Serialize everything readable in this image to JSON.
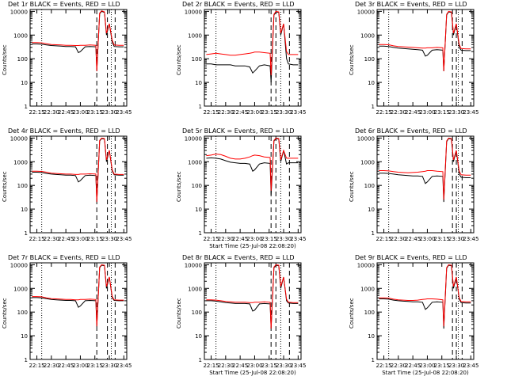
{
  "background": "#ffffff",
  "colors": {
    "events": "#000000",
    "lld": "#ff0000",
    "axes": "#000000"
  },
  "chart_data": [
    {
      "type": "line",
      "title": "Det 1r BLACK = Events, RED = LLD",
      "xlabel": "",
      "ylabel": "Counts/sec",
      "x": [
        "22:10",
        "22:15",
        "22:20",
        "22:25",
        "22:30",
        "22:35",
        "22:40",
        "22:45",
        "22:50",
        "22:55",
        "22:58",
        "23:00",
        "23:05",
        "23:10",
        "23:16",
        "23:17",
        "23:20",
        "23:22",
        "23:25",
        "23:27",
        "23:30",
        "23:33",
        "23:35",
        "23:40",
        "23:45"
      ],
      "ylog": true,
      "ylim": [
        1,
        12000
      ],
      "xticks": [
        "22:15",
        "22:30",
        "22:45",
        "23:00",
        "23:15",
        "23:30",
        "23:45"
      ],
      "yticks": [
        "1",
        "10",
        "100",
        "1000",
        "10000"
      ],
      "series": [
        {
          "name": "Events",
          "values": [
            420,
            420,
            410,
            380,
            360,
            350,
            340,
            330,
            330,
            320,
            180,
            200,
            320,
            330,
            320,
            30,
            8000,
            10000,
            9000,
            1000,
            3000,
            500,
            330,
            320,
            320
          ]
        },
        {
          "name": "LLD",
          "values": [
            480,
            480,
            470,
            430,
            400,
            390,
            380,
            370,
            370,
            360,
            360,
            370,
            370,
            380,
            370,
            30,
            8500,
            10500,
            9500,
            1200,
            3000,
            600,
            380,
            370,
            370
          ]
        }
      ],
      "vlines_dotted": [
        "22:20",
        "23:32"
      ],
      "vlines_dashed": [
        "23:17",
        "23:28",
        "23:36"
      ]
    },
    {
      "type": "line",
      "title": "Det 2r BLACK = Events, RED = LLD",
      "xlabel": "",
      "ylabel": "Counts/sec",
      "x": [
        "22:10",
        "22:15",
        "22:20",
        "22:25",
        "22:30",
        "22:35",
        "22:40",
        "22:45",
        "22:50",
        "22:55",
        "22:58",
        "23:00",
        "23:05",
        "23:10",
        "23:16",
        "23:17",
        "23:20",
        "23:22",
        "23:25",
        "23:27",
        "23:30",
        "23:33",
        "23:35",
        "23:40",
        "23:45"
      ],
      "ylog": true,
      "ylim": [
        1,
        12000
      ],
      "xticks": [
        "22:15",
        "22:30",
        "22:45",
        "23:00",
        "23:15",
        "23:30",
        "23:45"
      ],
      "yticks": [
        "1",
        "10",
        "100",
        "1000",
        "10000"
      ],
      "series": [
        {
          "name": "Events",
          "values": [
            60,
            60,
            55,
            55,
            55,
            55,
            50,
            50,
            50,
            45,
            25,
            30,
            50,
            55,
            50,
            10,
            7000,
            9500,
            9000,
            1000,
            3000,
            100,
            60,
            55,
            55
          ]
        },
        {
          "name": "LLD",
          "values": [
            150,
            160,
            170,
            160,
            150,
            140,
            140,
            150,
            160,
            170,
            180,
            190,
            190,
            180,
            170,
            20,
            7500,
            10000,
            9500,
            1200,
            3000,
            200,
            150,
            150,
            150
          ]
        }
      ],
      "vlines_dotted": [
        "22:20",
        "23:27"
      ],
      "vlines_dashed": [
        "23:17",
        "23:22",
        "23:36"
      ]
    },
    {
      "type": "line",
      "title": "Det 3r BLACK = Events, RED = LLD",
      "xlabel": "",
      "ylabel": "Counts/sec",
      "x": [
        "22:10",
        "22:15",
        "22:20",
        "22:25",
        "22:30",
        "22:35",
        "22:40",
        "22:45",
        "22:50",
        "22:55",
        "22:58",
        "23:00",
        "23:05",
        "23:10",
        "23:16",
        "23:17",
        "23:20",
        "23:22",
        "23:25",
        "23:27",
        "23:30",
        "23:33",
        "23:35",
        "23:40",
        "23:45"
      ],
      "ylog": true,
      "ylim": [
        1,
        12000
      ],
      "xticks": [
        "22:15",
        "22:30",
        "22:45",
        "23:00",
        "23:15",
        "23:30",
        "23:45"
      ],
      "yticks": [
        "1",
        "10",
        "100",
        "1000",
        "10000"
      ],
      "series": [
        {
          "name": "Events",
          "values": [
            340,
            340,
            330,
            300,
            280,
            270,
            260,
            250,
            240,
            230,
            130,
            140,
            230,
            240,
            230,
            30,
            7000,
            9500,
            9000,
            1000,
            3000,
            300,
            230,
            220,
            220
          ]
        },
        {
          "name": "LLD",
          "values": [
            400,
            400,
            390,
            350,
            330,
            320,
            310,
            300,
            290,
            280,
            280,
            290,
            290,
            300,
            290,
            30,
            7500,
            10000,
            9500,
            1200,
            3000,
            400,
            270,
            260,
            260
          ]
        }
      ],
      "vlines_dotted": [
        "22:20",
        "23:32"
      ],
      "vlines_dashed": [
        "23:26",
        "23:30",
        "23:36"
      ]
    },
    {
      "type": "line",
      "title": "Det 4r BLACK = Events, RED = LLD",
      "xlabel": "",
      "ylabel": "Counts/sec",
      "x": [
        "22:10",
        "22:15",
        "22:20",
        "22:25",
        "22:30",
        "22:35",
        "22:40",
        "22:45",
        "22:50",
        "22:55",
        "22:58",
        "23:00",
        "23:05",
        "23:10",
        "23:16",
        "23:17",
        "23:20",
        "23:22",
        "23:25",
        "23:27",
        "23:30",
        "23:33",
        "23:35",
        "23:40",
        "23:45"
      ],
      "ylog": true,
      "ylim": [
        1,
        12000
      ],
      "xticks": [
        "22:15",
        "22:30",
        "22:45",
        "23:00",
        "23:15",
        "23:30",
        "23:45"
      ],
      "yticks": [
        "1",
        "10",
        "100",
        "1000",
        "10000"
      ],
      "series": [
        {
          "name": "Events",
          "values": [
            360,
            360,
            350,
            320,
            300,
            290,
            280,
            270,
            270,
            260,
            140,
            160,
            260,
            270,
            260,
            20,
            7500,
            9500,
            9000,
            1000,
            3000,
            400,
            280,
            270,
            270
          ]
        },
        {
          "name": "LLD",
          "values": [
            400,
            400,
            390,
            360,
            330,
            320,
            310,
            300,
            300,
            290,
            290,
            300,
            300,
            310,
            300,
            20,
            8000,
            10000,
            9500,
            1200,
            3000,
            450,
            300,
            290,
            290
          ]
        }
      ],
      "vlines_dotted": [
        "22:20",
        "23:32"
      ],
      "vlines_dashed": [
        "23:17",
        "23:28",
        "23:36"
      ]
    },
    {
      "type": "line",
      "title": "Det 5r BLACK = Events, RED = LLD",
      "xlabel": "Start Time (25-Jul-08 22:08:20)",
      "ylabel": "Counts/sec",
      "x": [
        "22:10",
        "22:15",
        "22:20",
        "22:25",
        "22:30",
        "22:35",
        "22:40",
        "22:45",
        "22:50",
        "22:55",
        "22:58",
        "23:00",
        "23:05",
        "23:10",
        "23:16",
        "23:17",
        "23:20",
        "23:22",
        "23:25",
        "23:27",
        "23:30",
        "23:33",
        "23:35",
        "23:40",
        "23:45"
      ],
      "ylog": true,
      "ylim": [
        1,
        12000
      ],
      "xticks": [
        "22:15",
        "22:30",
        "22:45",
        "23:00",
        "23:15",
        "23:30",
        "23:45"
      ],
      "yticks": [
        "1",
        "10",
        "100",
        "1000",
        "10000"
      ],
      "series": [
        {
          "name": "Events",
          "values": [
            1400,
            1450,
            1400,
            1300,
            1100,
            950,
            900,
            850,
            850,
            800,
            400,
            450,
            800,
            900,
            850,
            40,
            7500,
            9500,
            9000,
            1000,
            3000,
            800,
            900,
            900,
            900
          ]
        },
        {
          "name": "LLD",
          "values": [
            1800,
            1900,
            2100,
            2000,
            1700,
            1400,
            1300,
            1300,
            1400,
            1600,
            1800,
            1900,
            1800,
            1600,
            1500,
            60,
            8000,
            10000,
            9500,
            1200,
            3000,
            1400,
            1400,
            1400,
            1400
          ]
        }
      ],
      "vlines_dotted": [
        "22:20",
        "23:27"
      ],
      "vlines_dashed": [
        "23:17",
        "23:22",
        "23:36"
      ]
    },
    {
      "type": "line",
      "title": "Det 6r BLACK = Events, RED = LLD",
      "xlabel": "",
      "ylabel": "Counts/sec",
      "x": [
        "22:10",
        "22:15",
        "22:20",
        "22:25",
        "22:30",
        "22:35",
        "22:40",
        "22:45",
        "22:50",
        "22:55",
        "22:58",
        "23:00",
        "23:05",
        "23:10",
        "23:16",
        "23:17",
        "23:20",
        "23:22",
        "23:25",
        "23:27",
        "23:30",
        "23:33",
        "23:35",
        "23:40",
        "23:45"
      ],
      "ylog": true,
      "ylim": [
        1,
        12000
      ],
      "xticks": [
        "22:15",
        "22:30",
        "22:45",
        "23:00",
        "23:15",
        "23:30",
        "23:45"
      ],
      "yticks": [
        "1",
        "10",
        "100",
        "1000",
        "10000"
      ],
      "series": [
        {
          "name": "Events",
          "values": [
            330,
            330,
            320,
            300,
            280,
            270,
            260,
            250,
            250,
            240,
            120,
            140,
            240,
            250,
            240,
            20,
            7000,
            9500,
            9000,
            1000,
            3000,
            300,
            220,
            210,
            210
          ]
        },
        {
          "name": "LLD",
          "values": [
            420,
            420,
            410,
            380,
            360,
            350,
            340,
            350,
            360,
            380,
            400,
            420,
            420,
            400,
            380,
            25,
            7500,
            10000,
            9500,
            1200,
            3000,
            400,
            280,
            270,
            270
          ]
        }
      ],
      "vlines_dotted": [
        "22:20",
        "23:32"
      ],
      "vlines_dashed": [
        "23:26",
        "23:30",
        "23:36"
      ]
    },
    {
      "type": "line",
      "title": "Det 7r BLACK = Events, RED = LLD",
      "xlabel": "",
      "ylabel": "Counts/sec",
      "x": [
        "22:10",
        "22:15",
        "22:20",
        "22:25",
        "22:30",
        "22:35",
        "22:40",
        "22:45",
        "22:50",
        "22:55",
        "22:58",
        "23:00",
        "23:05",
        "23:10",
        "23:16",
        "23:17",
        "23:20",
        "23:22",
        "23:25",
        "23:27",
        "23:30",
        "23:33",
        "23:35",
        "23:40",
        "23:45"
      ],
      "ylog": true,
      "ylim": [
        1,
        12000
      ],
      "xticks": [
        "22:15",
        "22:30",
        "22:45",
        "23:00",
        "23:15",
        "23:30",
        "23:45"
      ],
      "yticks": [
        "1",
        "10",
        "100",
        "1000",
        "10000"
      ],
      "series": [
        {
          "name": "Events",
          "values": [
            410,
            410,
            400,
            370,
            340,
            330,
            320,
            310,
            310,
            300,
            160,
            180,
            300,
            310,
            300,
            25,
            7500,
            9500,
            9000,
            1000,
            3000,
            400,
            310,
            300,
            300
          ]
        },
        {
          "name": "LLD",
          "values": [
            450,
            450,
            440,
            400,
            370,
            360,
            350,
            340,
            340,
            330,
            330,
            340,
            340,
            350,
            340,
            25,
            8000,
            10000,
            9500,
            1200,
            3000,
            450,
            330,
            320,
            320
          ]
        }
      ],
      "vlines_dotted": [
        "22:20",
        "23:32"
      ],
      "vlines_dashed": [
        "23:17",
        "23:28",
        "23:36"
      ]
    },
    {
      "type": "line",
      "title": "Det 8r BLACK = Events, RED = LLD",
      "xlabel": "Start Time (25-Jul-08 22:08:20)",
      "ylabel": "Counts/sec",
      "x": [
        "22:10",
        "22:15",
        "22:20",
        "22:25",
        "22:30",
        "22:35",
        "22:40",
        "22:45",
        "22:50",
        "22:55",
        "22:58",
        "23:00",
        "23:05",
        "23:10",
        "23:16",
        "23:17",
        "23:20",
        "23:22",
        "23:25",
        "23:27",
        "23:30",
        "23:33",
        "23:35",
        "23:40",
        "23:45"
      ],
      "ylog": true,
      "ylim": [
        1,
        12000
      ],
      "xticks": [
        "22:15",
        "22:30",
        "22:45",
        "23:00",
        "23:15",
        "23:30",
        "23:45"
      ],
      "yticks": [
        "1",
        "10",
        "100",
        "1000",
        "10000"
      ],
      "series": [
        {
          "name": "Events",
          "values": [
            300,
            300,
            290,
            270,
            250,
            240,
            230,
            230,
            230,
            220,
            110,
            120,
            220,
            230,
            220,
            20,
            7500,
            9500,
            9000,
            1000,
            3000,
            300,
            240,
            230,
            230
          ]
        },
        {
          "name": "LLD",
          "values": [
            330,
            330,
            320,
            300,
            280,
            270,
            260,
            260,
            260,
            250,
            250,
            260,
            260,
            270,
            260,
            20,
            8000,
            10000,
            9500,
            1200,
            3000,
            350,
            260,
            250,
            250
          ]
        }
      ],
      "vlines_dotted": [
        "22:20",
        "23:27"
      ],
      "vlines_dashed": [
        "23:17",
        "23:22",
        "23:36"
      ]
    },
    {
      "type": "line",
      "title": "Det 9r BLACK = Events, RED = LLD",
      "xlabel": "Start Time (25-Jul-08 22:08:20)",
      "ylabel": "Counts/sec",
      "x": [
        "22:10",
        "22:15",
        "22:20",
        "22:25",
        "22:30",
        "22:35",
        "22:40",
        "22:45",
        "22:50",
        "22:55",
        "22:58",
        "23:00",
        "23:05",
        "23:10",
        "23:16",
        "23:17",
        "23:20",
        "23:22",
        "23:25",
        "23:27",
        "23:30",
        "23:33",
        "23:35",
        "23:40",
        "23:45"
      ],
      "ylog": true,
      "ylim": [
        1,
        12000
      ],
      "xticks": [
        "22:15",
        "22:30",
        "22:45",
        "23:00",
        "23:15",
        "23:30",
        "23:45"
      ],
      "yticks": [
        "1",
        "10",
        "100",
        "1000",
        "10000"
      ],
      "series": [
        {
          "name": "Events",
          "values": [
            360,
            360,
            350,
            320,
            300,
            290,
            280,
            270,
            270,
            260,
            130,
            150,
            260,
            270,
            260,
            20,
            7000,
            9500,
            9000,
            1000,
            3000,
            350,
            250,
            240,
            240
          ]
        },
        {
          "name": "LLD",
          "values": [
            400,
            400,
            390,
            350,
            330,
            320,
            310,
            310,
            320,
            340,
            350,
            360,
            360,
            350,
            330,
            25,
            7500,
            10000,
            9500,
            1200,
            3000,
            400,
            280,
            270,
            270
          ]
        }
      ],
      "vlines_dotted": [
        "22:20",
        "23:32"
      ],
      "vlines_dashed": [
        "23:26",
        "23:30",
        "23:36"
      ]
    }
  ]
}
